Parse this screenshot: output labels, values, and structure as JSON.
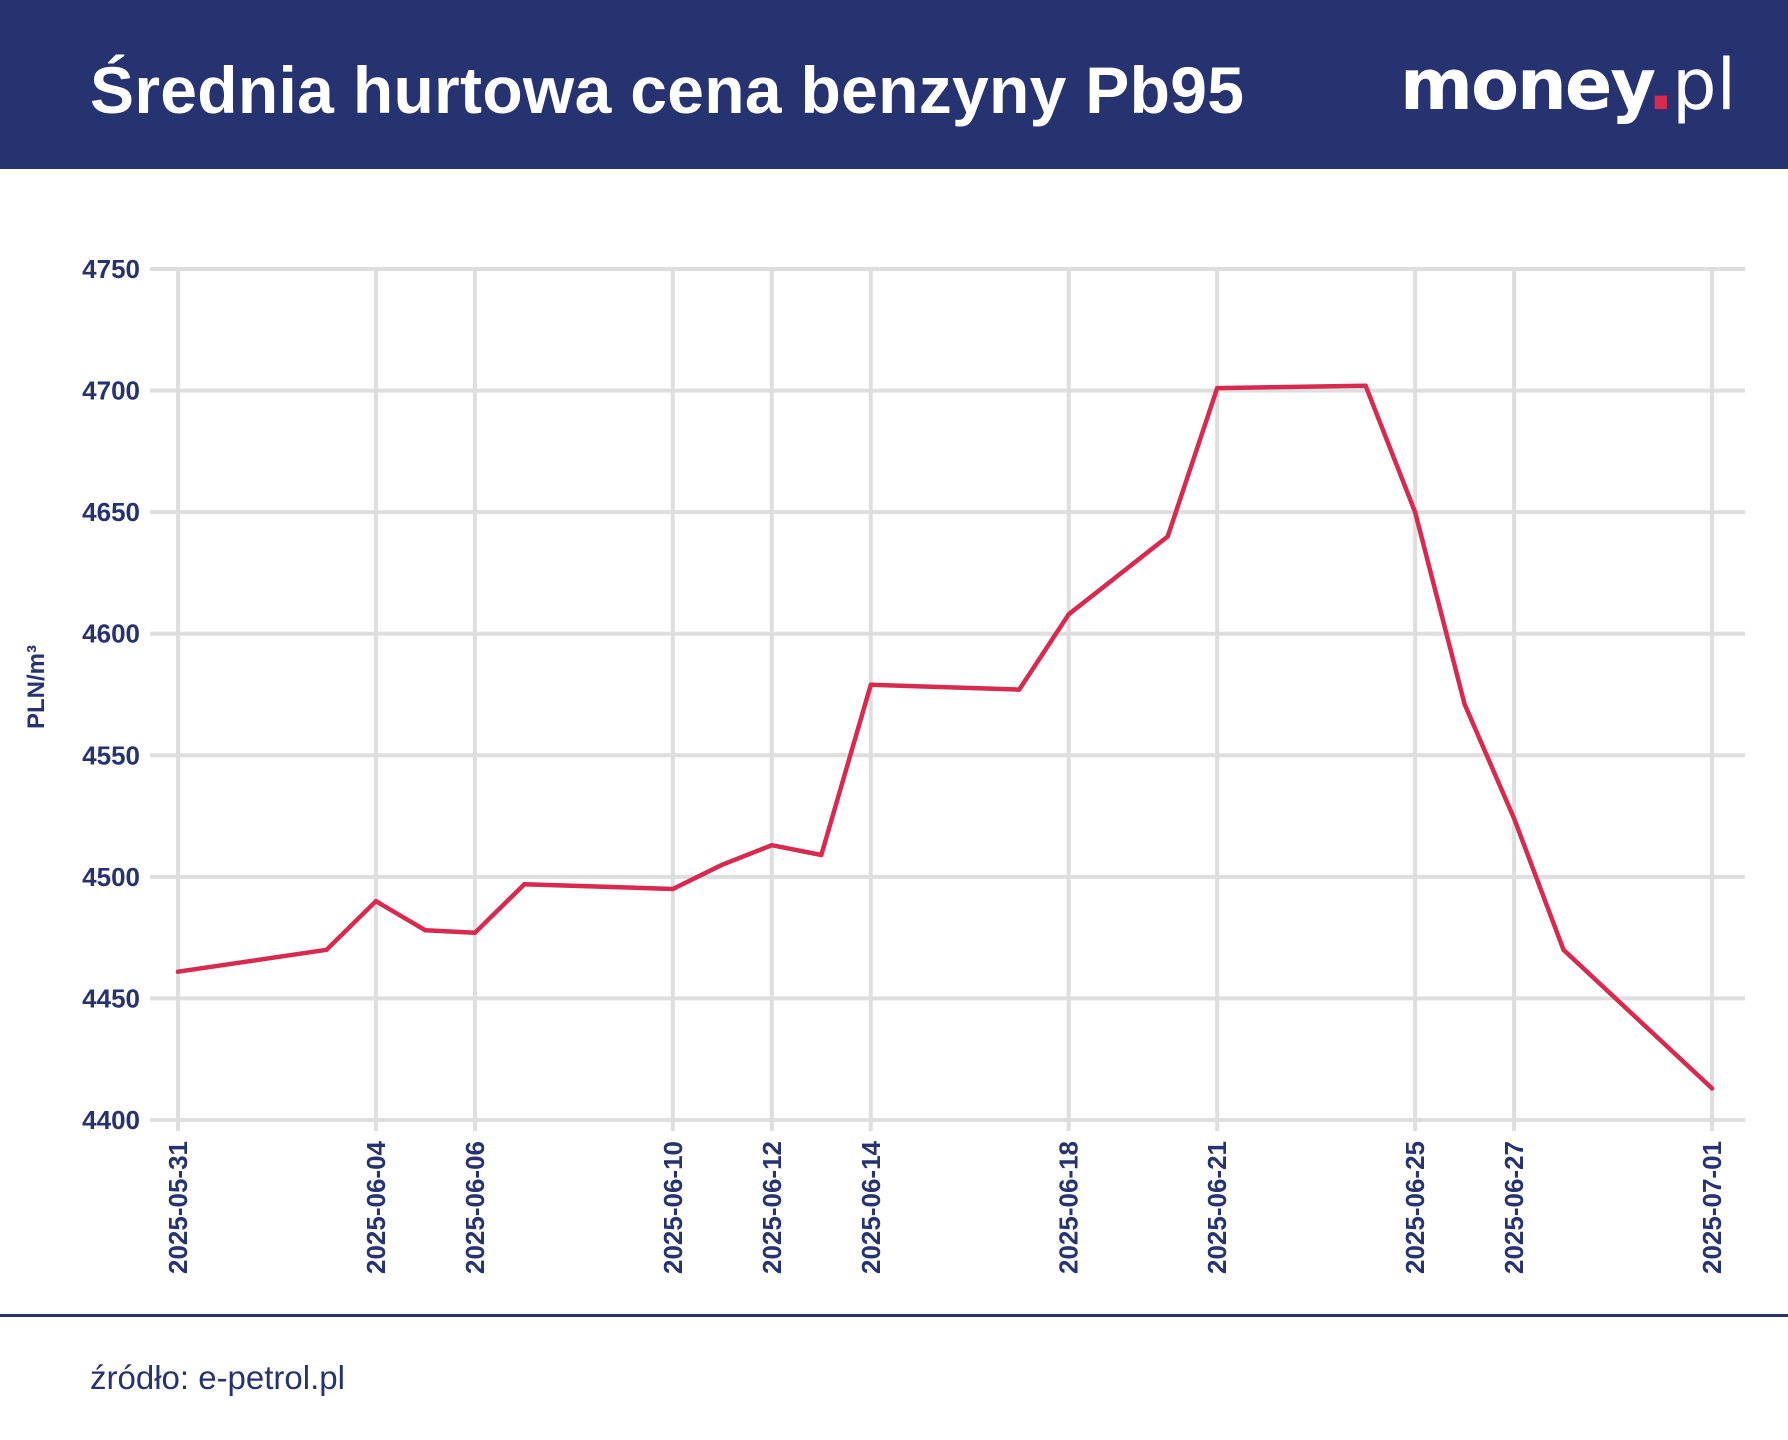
{
  "header": {
    "title": "Średnia hurtowa cena benzyny Pb95",
    "logo": {
      "main": "money",
      "dot": ".",
      "suffix": "pl"
    }
  },
  "colors": {
    "header_bg": "#263370",
    "line": "#d8294f",
    "axis_text": "#263370",
    "grid": "#dedede",
    "accent_dot": "#d8294f"
  },
  "footer": {
    "source": "źródło: e-petrol.pl"
  },
  "chart_data": {
    "type": "line",
    "title": "Średnia hurtowa cena benzyny Pb95",
    "ylabel": "PLN/m³",
    "xlabel": "",
    "ylim": [
      4400,
      4750
    ],
    "yticks": [
      4400,
      4450,
      4500,
      4550,
      4600,
      4650,
      4700,
      4750
    ],
    "xtick_labels": [
      "2025-05-31",
      "2025-06-04",
      "2025-06-06",
      "2025-06-10",
      "2025-06-12",
      "2025-06-14",
      "2025-06-18",
      "2025-06-21",
      "2025-06-25",
      "2025-06-27",
      "2025-07-01"
    ],
    "grid": true,
    "legend": "none",
    "series": [
      {
        "x": [
          "2025-05-31",
          "2025-06-03",
          "2025-06-04",
          "2025-06-05",
          "2025-06-06",
          "2025-06-07",
          "2025-06-10",
          "2025-06-11",
          "2025-06-12",
          "2025-06-13",
          "2025-06-14",
          "2025-06-17",
          "2025-06-18",
          "2025-06-20",
          "2025-06-21",
          "2025-06-24",
          "2025-06-25",
          "2025-06-26",
          "2025-06-27",
          "2025-06-28",
          "2025-07-01"
        ],
        "values": [
          4461,
          4470,
          4490,
          4478,
          4477,
          4497,
          4495,
          4505,
          4513,
          4509,
          4579,
          4577,
          4608,
          4640,
          4701,
          4702,
          4650,
          4571,
          4524,
          4470,
          4413
        ]
      }
    ]
  }
}
